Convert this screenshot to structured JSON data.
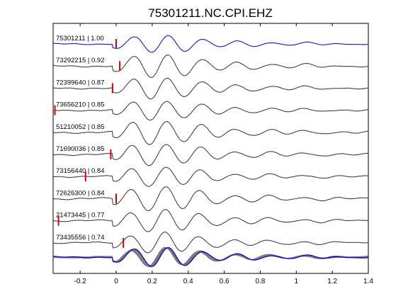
{
  "chart_data": {
    "type": "line",
    "title": "75301211.NC.CPI.EHZ",
    "xlabel": "",
    "ylabel": "",
    "xlim": [
      -0.35,
      1.4
    ],
    "xticks": [
      -0.2,
      0,
      0.2,
      0.4,
      0.6,
      0.8,
      1,
      1.2,
      1.4
    ],
    "xtick_labels": [
      "-0.2",
      "0",
      "0.2",
      "0.4",
      "0.6",
      "0.8",
      "1",
      "1.2",
      "1.4"
    ],
    "grid": false,
    "traces": [
      {
        "label": "75301211 | 1.00",
        "id": "75301211",
        "cc": 1.0,
        "pick": 0.0,
        "color": "#0000cc"
      },
      {
        "label": "73292215 | 0.92",
        "id": "73292215",
        "cc": 0.92,
        "pick": 0.02,
        "color": "#333333"
      },
      {
        "label": "72399640 | 0.87",
        "id": "72399640",
        "cc": 0.87,
        "pick": -0.02,
        "color": "#333333"
      },
      {
        "label": "73656210 | 0.85",
        "id": "73656210",
        "cc": 0.85,
        "pick": -0.34,
        "color": "#333333"
      },
      {
        "label": "51210052 | 0.85",
        "id": "51210052",
        "cc": 0.85,
        "pick": null,
        "color": "#333333"
      },
      {
        "label": "71690036 | 0.85",
        "id": "71690036",
        "cc": 0.85,
        "pick": -0.03,
        "color": "#333333"
      },
      {
        "label": "73156440 | 0.84",
        "id": "73156440",
        "cc": 0.84,
        "pick": -0.17,
        "color": "#333333"
      },
      {
        "label": "72626300 | 0.84",
        "id": "72626300",
        "cc": 0.84,
        "pick": 0.0,
        "color": "#333333"
      },
      {
        "label": "21473445 | 0.77",
        "id": "21473445",
        "cc": 0.77,
        "pick": -0.32,
        "color": "#333333"
      },
      {
        "label": "73435556 | 0.74",
        "id": "73435556",
        "cc": 0.74,
        "pick": 0.04,
        "color": "#333333"
      }
    ],
    "stack": {
      "overlay_count": 10,
      "reference_color": "#0000cc",
      "overlay_color": "#777777"
    },
    "pick_marker_color": "#dd0000"
  }
}
